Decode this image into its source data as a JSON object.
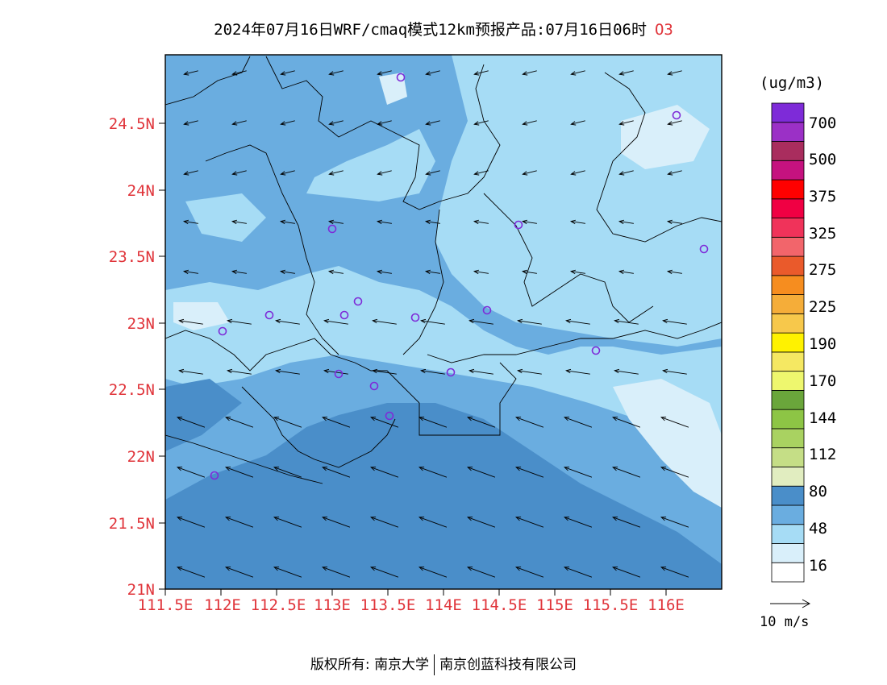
{
  "title": {
    "main": "2024年07月16日WRF/cmaq模式12km预报产品:07月16日06时",
    "species": "O3"
  },
  "map": {
    "lat_labels": [
      "24.5N",
      "24N",
      "23.5N",
      "23N",
      "22.5N",
      "22N",
      "21.5N",
      "21N"
    ],
    "lon_labels": [
      "111.5E",
      "112E",
      "112.5E",
      "113E",
      "113.5E",
      "114E",
      "114.5E",
      "115E",
      "115.5E",
      "116E"
    ],
    "station_marker": "circle-icon",
    "arrow_marker": "wind-arrow-icon"
  },
  "legend": {
    "unit": "(ug/m3)",
    "colors": [
      "#ffffff",
      "#d9effa",
      "#a6dcf5",
      "#6aade0",
      "#4a8ec9",
      "#e1edc0",
      "#c5de86",
      "#a9d261",
      "#8dc545",
      "#6aa63b",
      "#eef76e",
      "#f5e862",
      "#fff200",
      "#f7c84b",
      "#f5ad39",
      "#f68d1f",
      "#ea5a2b",
      "#f2656b",
      "#f0335a",
      "#f00043",
      "#ff0000",
      "#c5127f",
      "#a92d5e",
      "#9b30c6",
      "#7e2bd8"
    ],
    "labels": [
      "16",
      "48",
      "80",
      "112",
      "144",
      "170",
      "190",
      "225",
      "275",
      "325",
      "375",
      "500",
      "700"
    ]
  },
  "wind_reference": {
    "label": "10 m/s"
  },
  "footer": {
    "copyright_prefix": "版权所有:",
    "org1": "南京大学",
    "org2": "南京创蓝科技有限公司"
  }
}
